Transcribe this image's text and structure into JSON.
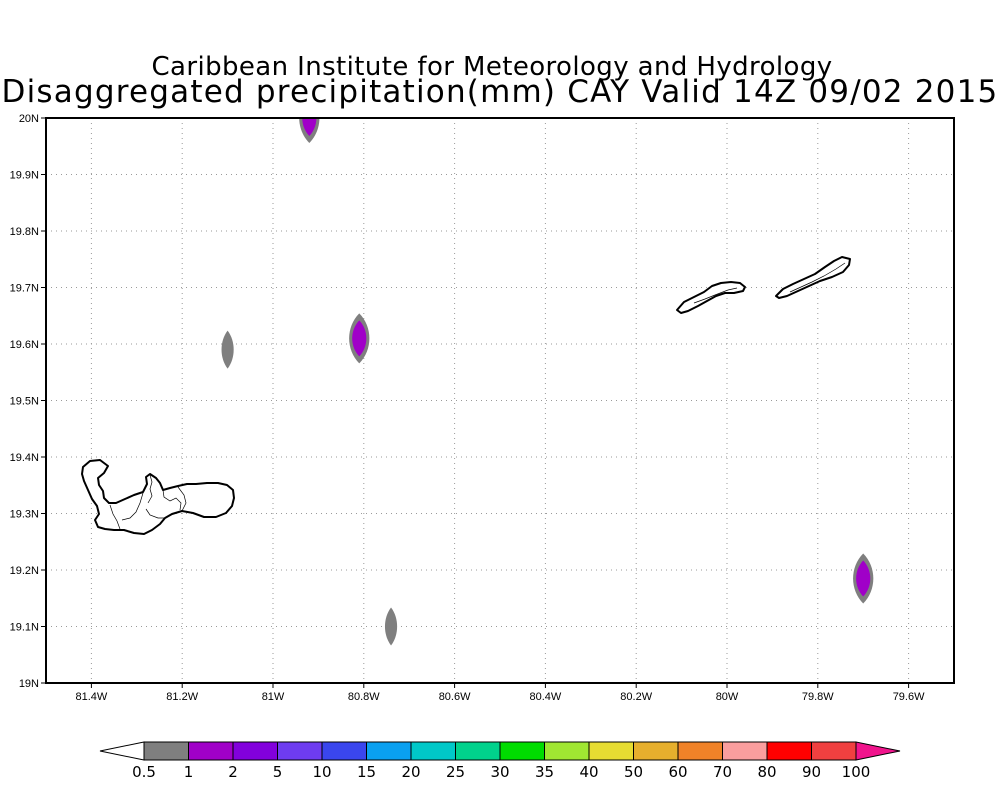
{
  "title": {
    "line1": "Caribbean Institute for Meteorology and Hydrology",
    "line2": "Disaggregated precipitation(mm) CAY Valid 14Z 09/02 2015"
  },
  "map": {
    "lon_ticks": [
      "81.4W",
      "81.2W",
      "81W",
      "80.8W",
      "80.6W",
      "80.4W",
      "80.2W",
      "80W",
      "79.8W",
      "79.6W"
    ],
    "lat_ticks": [
      "19N",
      "19.1N",
      "19.2N",
      "19.3N",
      "19.4N",
      "19.5N",
      "19.6N",
      "19.7N",
      "19.8N",
      "19.9N",
      "20N"
    ],
    "lon_range": [
      -81.5,
      -79.5
    ],
    "lat_range": [
      19.0,
      20.0
    ],
    "grid": true,
    "islands": [
      "grand-cayman",
      "little-cayman",
      "cayman-brac"
    ],
    "precip_cells": [
      {
        "lon": -80.92,
        "lat": 20.0,
        "category": "1-2"
      },
      {
        "lon": -81.1,
        "lat": 19.59,
        "category": "0.5-1"
      },
      {
        "lon": -80.81,
        "lat": 19.61,
        "category": "1-2"
      },
      {
        "lon": -80.74,
        "lat": 19.1,
        "category": "0.5-1"
      },
      {
        "lon": -79.7,
        "lat": 19.185,
        "category": "1-2"
      }
    ]
  },
  "colorbar": {
    "labels": [
      "0.5",
      "1",
      "2",
      "5",
      "10",
      "15",
      "20",
      "25",
      "30",
      "35",
      "40",
      "50",
      "60",
      "70",
      "80",
      "90",
      "100"
    ],
    "colors": [
      "#ffffff",
      "#7f7f7f",
      "#a000c8",
      "#8200dc",
      "#6e3cf0",
      "#3a46ee",
      "#0aa0f0",
      "#00c8c8",
      "#00d28c",
      "#00dc00",
      "#a0e632",
      "#e6dc32",
      "#e6af2d",
      "#f08228",
      "#fa9e9e",
      "#ff0000",
      "#f04040",
      "#f0148c"
    ]
  },
  "colors": {
    "light_rain": "#7f7f7f",
    "moderate_rain": "#a000c8"
  }
}
